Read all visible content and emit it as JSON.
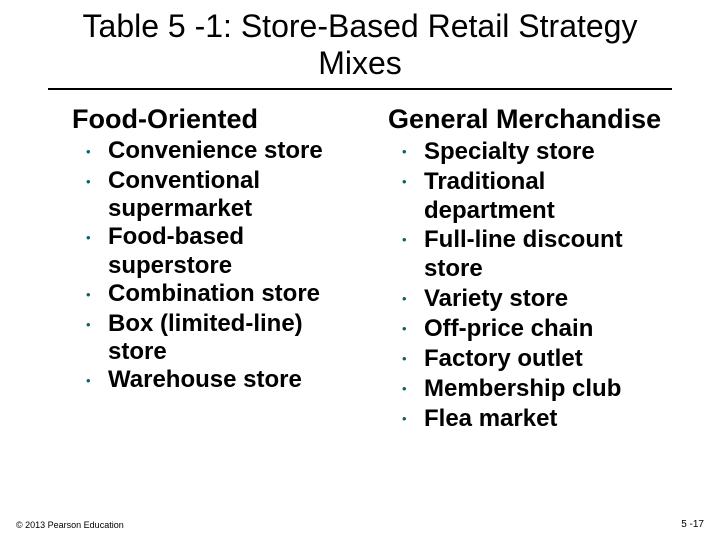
{
  "title": "Table 5 -1: Store-Based Retail Strategy Mixes",
  "columns": [
    {
      "header": "Food-Oriented",
      "items": [
        "Convenience store",
        "Conventional supermarket",
        "Food-based superstore",
        "Combination store",
        "Box (limited-line) store",
        "Warehouse store"
      ]
    },
    {
      "header": "General Merchandise",
      "items": [
        "Specialty store",
        "Traditional department",
        "Full-line discount store",
        "Variety store",
        "Off-price chain",
        "Factory outlet",
        "Membership club",
        "Flea market"
      ]
    }
  ],
  "footer": {
    "copyright": "© 2013 Pearson Education",
    "pageNumber": "5 -17"
  },
  "style": {
    "bullet_color": "#006666",
    "title_fontsize": 32,
    "header_fontsize": 27,
    "item_fontsize": 24,
    "text_color": "#000000",
    "background": "#ffffff"
  }
}
